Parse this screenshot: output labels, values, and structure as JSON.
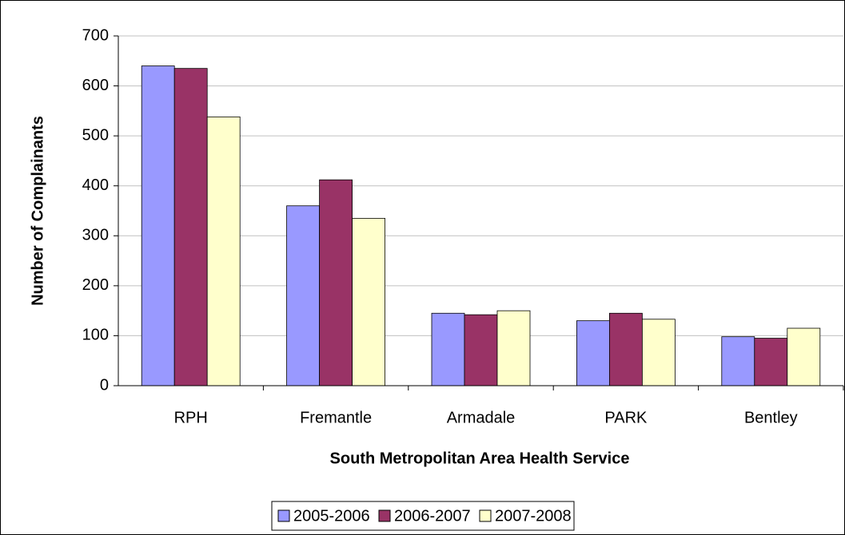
{
  "chart_data": {
    "type": "bar",
    "x_label": "South Metropolitan Area Health Service",
    "y_label": "Number of Complainants",
    "categories": [
      "RPH",
      "Fremantle",
      "Armadale",
      "PARK",
      "Bentley"
    ],
    "series": [
      {
        "name": "2005-2006",
        "color": "#9999ff",
        "values": [
          640,
          360,
          145,
          130,
          98
        ]
      },
      {
        "name": "2006-2007",
        "color": "#993366",
        "values": [
          635,
          412,
          142,
          145,
          95
        ]
      },
      {
        "name": "2007-2008",
        "color": "#ffffcc",
        "values": [
          538,
          335,
          150,
          133,
          115
        ]
      }
    ],
    "ylim": [
      0,
      700
    ],
    "yticks": [
      0,
      100,
      200,
      300,
      400,
      500,
      600,
      700
    ],
    "grid": true,
    "legend": "bottom"
  }
}
